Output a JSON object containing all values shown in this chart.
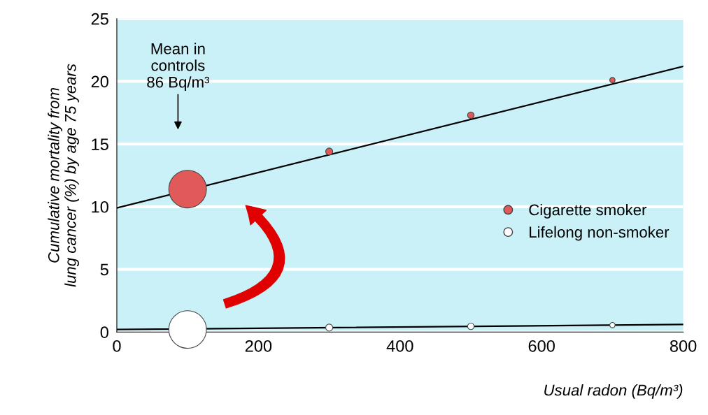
{
  "chart_data": {
    "type": "bubble",
    "xlabel": "Usual radon (Bq/m³)",
    "ylabel": "Cumulative mortality from\nlung cancer (%) by age 75 years",
    "xlim": [
      0,
      800
    ],
    "xticks": [
      0,
      200,
      400,
      600,
      800
    ],
    "ylim": [
      0,
      25
    ],
    "yticks": [
      0,
      5,
      10,
      15,
      20,
      25
    ],
    "grid": "y",
    "legend": "right",
    "series": [
      {
        "type": "line",
        "color": "#000000",
        "x": [
          0,
          800
        ],
        "values": [
          9.9,
          21.2
        ]
      },
      {
        "type": "line",
        "color": "#000000",
        "x": [
          0,
          800
        ],
        "values": [
          0.2,
          0.6
        ]
      },
      {
        "name": "Cigarette smoker",
        "color": "#e05a5a",
        "x": [
          100,
          300,
          500,
          700
        ],
        "values": [
          11.4,
          14.4,
          17.3,
          20.1
        ],
        "sizes": [
          1,
          0.035,
          0.03,
          0.02
        ]
      },
      {
        "name": "Lifelong non-smoker",
        "color": "#ffffff",
        "x": [
          100,
          300,
          500,
          700
        ],
        "values": [
          0.2,
          0.35,
          0.45,
          0.55
        ],
        "sizes": [
          1,
          0.035,
          0.03,
          0.02
        ]
      }
    ],
    "annotations": [
      "Mean in\ncontrols\n86 Bq/m³"
    ]
  }
}
